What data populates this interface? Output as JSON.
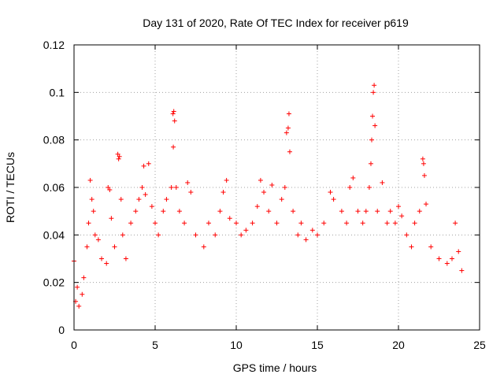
{
  "chart_data": {
    "type": "scatter",
    "title": "Day 131 of 2020, Rate Of TEC Index for receiver p619",
    "xlabel": "GPS time / hours",
    "ylabel": "ROTI / TECUs",
    "xlim": [
      0,
      25
    ],
    "ylim": [
      0,
      0.12
    ],
    "xticks": [
      0,
      5,
      10,
      15,
      20,
      25
    ],
    "xtick_labels": [
      "0",
      "5",
      "10",
      "15",
      "20",
      "25"
    ],
    "yticks": [
      0,
      0.02,
      0.04,
      0.06,
      0.08,
      0.1,
      0.12
    ],
    "ytick_labels": [
      "0",
      "0.02",
      "0.04",
      "0.06",
      "0.08",
      "0.1",
      "0.12"
    ],
    "grid": true,
    "marker": "plus",
    "color": "#ff0000",
    "series": [
      {
        "name": "ROTI",
        "points": [
          [
            0.0,
            0.029
          ],
          [
            0.1,
            0.012
          ],
          [
            0.2,
            0.018
          ],
          [
            0.3,
            0.01
          ],
          [
            0.5,
            0.015
          ],
          [
            0.6,
            0.022
          ],
          [
            0.8,
            0.035
          ],
          [
            0.9,
            0.045
          ],
          [
            1.0,
            0.063
          ],
          [
            1.1,
            0.055
          ],
          [
            1.2,
            0.05
          ],
          [
            1.3,
            0.04
          ],
          [
            1.5,
            0.038
          ],
          [
            1.7,
            0.03
          ],
          [
            2.0,
            0.028
          ],
          [
            2.1,
            0.06
          ],
          [
            2.2,
            0.059
          ],
          [
            2.3,
            0.047
          ],
          [
            2.5,
            0.035
          ],
          [
            2.7,
            0.074
          ],
          [
            2.75,
            0.072
          ],
          [
            2.8,
            0.073
          ],
          [
            2.9,
            0.055
          ],
          [
            3.0,
            0.04
          ],
          [
            3.2,
            0.03
          ],
          [
            3.5,
            0.045
          ],
          [
            3.8,
            0.05
          ],
          [
            4.0,
            0.055
          ],
          [
            4.2,
            0.06
          ],
          [
            4.3,
            0.069
          ],
          [
            4.4,
            0.057
          ],
          [
            4.6,
            0.07
          ],
          [
            4.8,
            0.052
          ],
          [
            5.0,
            0.045
          ],
          [
            5.2,
            0.04
          ],
          [
            5.5,
            0.05
          ],
          [
            5.7,
            0.055
          ],
          [
            6.0,
            0.06
          ],
          [
            6.1,
            0.091
          ],
          [
            6.15,
            0.092
          ],
          [
            6.2,
            0.088
          ],
          [
            6.12,
            0.077
          ],
          [
            6.3,
            0.06
          ],
          [
            6.5,
            0.05
          ],
          [
            6.8,
            0.045
          ],
          [
            7.0,
            0.062
          ],
          [
            7.2,
            0.058
          ],
          [
            7.5,
            0.04
          ],
          [
            8.0,
            0.035
          ],
          [
            8.3,
            0.045
          ],
          [
            8.7,
            0.04
          ],
          [
            9.0,
            0.05
          ],
          [
            9.2,
            0.058
          ],
          [
            9.4,
            0.063
          ],
          [
            9.6,
            0.047
          ],
          [
            10.0,
            0.045
          ],
          [
            10.3,
            0.04
          ],
          [
            10.6,
            0.042
          ],
          [
            11.0,
            0.045
          ],
          [
            11.3,
            0.052
          ],
          [
            11.5,
            0.063
          ],
          [
            11.7,
            0.058
          ],
          [
            12.0,
            0.05
          ],
          [
            12.2,
            0.061
          ],
          [
            12.5,
            0.045
          ],
          [
            12.8,
            0.055
          ],
          [
            13.0,
            0.06
          ],
          [
            13.1,
            0.083
          ],
          [
            13.2,
            0.085
          ],
          [
            13.25,
            0.091
          ],
          [
            13.3,
            0.075
          ],
          [
            13.5,
            0.05
          ],
          [
            13.8,
            0.04
          ],
          [
            14.0,
            0.045
          ],
          [
            14.3,
            0.038
          ],
          [
            14.7,
            0.042
          ],
          [
            15.0,
            0.04
          ],
          [
            15.4,
            0.045
          ],
          [
            15.8,
            0.058
          ],
          [
            16.0,
            0.055
          ],
          [
            16.5,
            0.05
          ],
          [
            16.8,
            0.045
          ],
          [
            17.0,
            0.06
          ],
          [
            17.2,
            0.064
          ],
          [
            17.5,
            0.05
          ],
          [
            17.8,
            0.045
          ],
          [
            18.0,
            0.05
          ],
          [
            18.2,
            0.06
          ],
          [
            18.3,
            0.07
          ],
          [
            18.35,
            0.08
          ],
          [
            18.4,
            0.09
          ],
          [
            18.45,
            0.1
          ],
          [
            18.5,
            0.103
          ],
          [
            18.55,
            0.086
          ],
          [
            18.7,
            0.05
          ],
          [
            19.0,
            0.062
          ],
          [
            19.3,
            0.045
          ],
          [
            19.5,
            0.05
          ],
          [
            19.8,
            0.045
          ],
          [
            20.0,
            0.052
          ],
          [
            20.2,
            0.048
          ],
          [
            20.5,
            0.04
          ],
          [
            20.8,
            0.035
          ],
          [
            21.0,
            0.045
          ],
          [
            21.3,
            0.05
          ],
          [
            21.5,
            0.072
          ],
          [
            21.55,
            0.07
          ],
          [
            21.6,
            0.065
          ],
          [
            21.7,
            0.053
          ],
          [
            22.0,
            0.035
          ],
          [
            22.5,
            0.03
          ],
          [
            23.0,
            0.028
          ],
          [
            23.3,
            0.03
          ],
          [
            23.5,
            0.045
          ],
          [
            23.7,
            0.033
          ],
          [
            23.9,
            0.025
          ]
        ]
      }
    ]
  }
}
